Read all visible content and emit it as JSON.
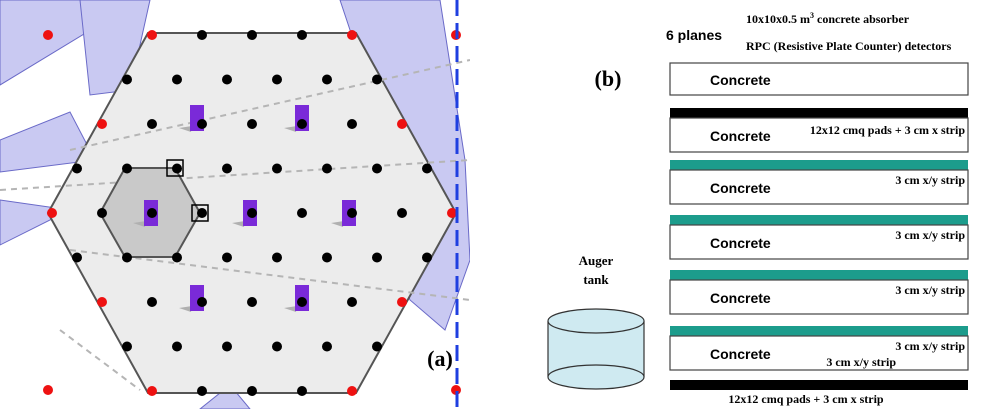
{
  "colors": {
    "blue_sector": "#c9c9f2",
    "blue_sector_stroke": "#6a6ac8",
    "hex_fill": "#ececec",
    "hex_stroke": "#555555",
    "small_hex_fill": "#c9c9c9",
    "dot_black": "#000000",
    "dot_red": "#ee1111",
    "detector_purple": "#7a2ad8",
    "dashed_axis": "#1f3fe0",
    "teal_rpc": "#1c9c8c",
    "tank_fill": "#cfeaf1"
  },
  "panel_a": {
    "label": "(a)"
  },
  "panel_b": {
    "label": "(b)",
    "header": {
      "planes": "6 planes",
      "absorber_prefix": "10x10x0.5 m",
      "absorber_sup": "3",
      "absorber_suffix": " concrete absorber",
      "rpc": "RPC (Resistive Plate Counter) detectors"
    },
    "slabs": [
      {
        "concrete": "Concrete",
        "note": "",
        "note2": "",
        "bar": "none"
      },
      {
        "concrete": "Concrete",
        "note": "12x12 cmq pads + 3 cm x strip",
        "note2": "",
        "bar": "black"
      },
      {
        "concrete": "Concrete",
        "note": "3 cm x/y strip",
        "note2": "",
        "bar": "teal"
      },
      {
        "concrete": "Concrete",
        "note": "3 cm x/y strip",
        "note2": "",
        "bar": "teal"
      },
      {
        "concrete": "Concrete",
        "note": "3 cm x/y strip",
        "note2": "",
        "bar": "teal"
      },
      {
        "concrete": "Concrete",
        "note": "3 cm x/y strip",
        "note2": "3 cm x/y strip",
        "bar": "teal"
      }
    ],
    "bottom_note": "12x12 cmq pads + 3 cm x strip",
    "tank_label_1": "Auger",
    "tank_label_2": "tank"
  }
}
